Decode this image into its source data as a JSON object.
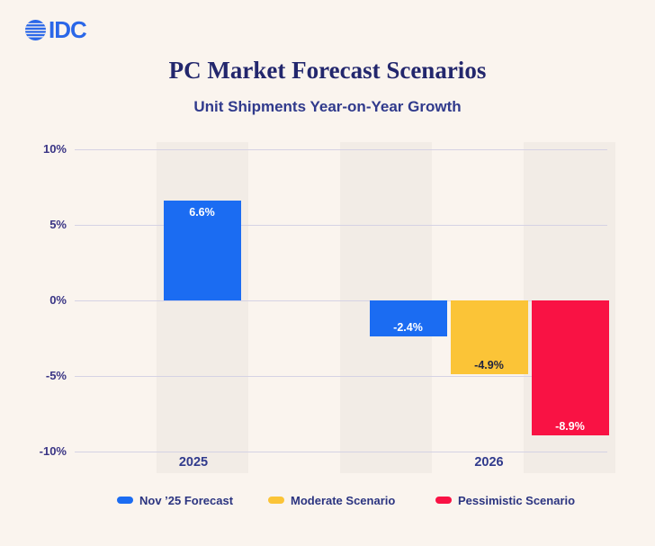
{
  "logo": {
    "text": "IDC",
    "color": "#2A67E8"
  },
  "header": {
    "title": "PC Market Forecast Scenarios",
    "subtitle": "Unit Shipments Year-on-Year Growth",
    "title_color": "#23276D",
    "subtitle_color": "#303A8C"
  },
  "chart_data": {
    "type": "bar",
    "categories": [
      "2025",
      "2026"
    ],
    "series": [
      {
        "name": "Nov ’25 Forecast",
        "color": "#1B6CF2",
        "label_color": "#FFFFFF",
        "values": [
          6.6,
          -2.4
        ]
      },
      {
        "name": "Moderate Scenario",
        "color": "#FBC437",
        "label_color": "#1F2440",
        "values": [
          null,
          -4.9
        ]
      },
      {
        "name": "Pessimistic Scenario",
        "color": "#F91244",
        "label_color": "#FFFFFF",
        "values": [
          null,
          -8.9
        ]
      }
    ],
    "bar_labels": [
      [
        "6.6%",
        "-2.4%"
      ],
      [
        null,
        "-4.9%"
      ],
      [
        null,
        "-8.9%"
      ]
    ],
    "yticks": [
      "10%",
      "5%",
      "0%",
      "-5%",
      "-10%"
    ],
    "ytick_values": [
      10,
      5,
      0,
      -5,
      -10
    ],
    "ylim": [
      -10,
      10
    ],
    "grid": true,
    "legend_position": "bottom",
    "axis_label_color": "#3A3585",
    "grid_color": "#D5D2E4",
    "band_color": "#F2ECE6",
    "legend_text_color": "#2B3480"
  }
}
